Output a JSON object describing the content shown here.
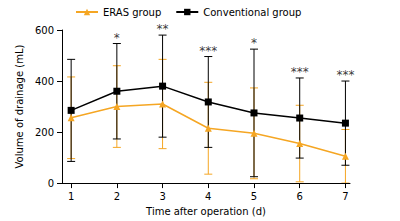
{
  "chart_data": {
    "type": "line",
    "x_label": "Time after operation (d)",
    "y_label": "Volume of drainage (mL)",
    "x": [
      1,
      2,
      3,
      4,
      5,
      6,
      7
    ],
    "series": [
      {
        "name": "ERAS group",
        "color": "#f5a623",
        "marker": "triangle",
        "values": [
          256,
          300,
          310,
          215,
          195,
          155,
          105
        ],
        "errors": [
          160,
          160,
          175,
          180,
          178,
          150,
          105
        ]
      },
      {
        "name": "Conventional group",
        "color": "#000000",
        "marker": "square",
        "values": [
          285,
          360,
          380,
          318,
          275,
          255,
          235
        ],
        "errors": [
          200,
          187,
          200,
          178,
          250,
          157,
          165
        ]
      }
    ],
    "annotations": [
      {
        "x": 2,
        "text": "*"
      },
      {
        "x": 3,
        "text": "**"
      },
      {
        "x": 4,
        "text": "***"
      },
      {
        "x": 5,
        "text": "*"
      },
      {
        "x": 6,
        "text": "***"
      },
      {
        "x": 7,
        "text": "***"
      }
    ],
    "xlim": [
      0.8,
      7.1
    ],
    "xticks": [
      1,
      2,
      3,
      4,
      5,
      6,
      7
    ],
    "ylim": [
      0,
      600
    ],
    "yticks": [
      0,
      200,
      400,
      600
    ],
    "grid": false,
    "legend": "upper left"
  }
}
